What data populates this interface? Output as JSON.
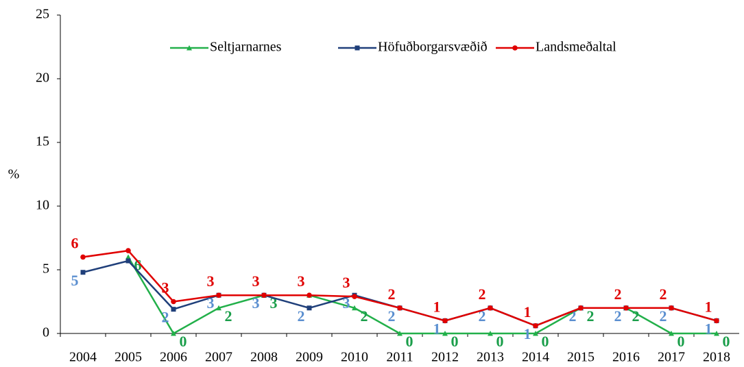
{
  "chart_data": {
    "type": "line",
    "y_label": "%",
    "categories": [
      "2004",
      "2005",
      "2006",
      "2007",
      "2008",
      "2009",
      "2010",
      "2011",
      "2012",
      "2013",
      "2014",
      "2015",
      "2016",
      "2017",
      "2018"
    ],
    "series": [
      {
        "name": "Seltjarnarnes",
        "color": "#22b04a",
        "label_color": "#1a9e4a",
        "marker": "triangle",
        "values": [
          null,
          6.0,
          0,
          2,
          3,
          3,
          2,
          0,
          0,
          0,
          0,
          2,
          2,
          0,
          0
        ],
        "value_labels": [
          null,
          "6",
          "0",
          "2",
          "3",
          null,
          "2",
          "0",
          "0",
          "0",
          "0",
          "2",
          "2",
          "0",
          "0"
        ]
      },
      {
        "name": "Höfuðborgarsvæðið",
        "color": "#1f3f7a",
        "label_color": "#5b8fd0",
        "marker": "square",
        "values": [
          4.8,
          5.7,
          1.9,
          3.0,
          3.0,
          2.0,
          3.0,
          2.0,
          1.0,
          2.0,
          0.6,
          2.0,
          2.0,
          2.0,
          1.0
        ],
        "value_labels": [
          "5",
          null,
          "2",
          "3",
          "3",
          "2",
          "3",
          "2",
          "1",
          "2",
          "1",
          "2",
          "2",
          "2",
          "1"
        ]
      },
      {
        "name": "Landsmeðaltal",
        "color": "#e00000",
        "label_color": "#e00000",
        "marker": "circle",
        "values": [
          6.0,
          6.5,
          2.5,
          3.0,
          3.0,
          3.0,
          2.9,
          2.0,
          1.0,
          2.0,
          0.6,
          2.0,
          2.0,
          2.0,
          1.0
        ],
        "value_labels": [
          "6",
          null,
          "3",
          "3",
          "3",
          "3",
          "3",
          "2",
          "1",
          "2",
          "1",
          null,
          "2",
          "2",
          "1"
        ]
      }
    ],
    "ylim": [
      0,
      25
    ],
    "yticks": [
      0,
      5,
      10,
      15,
      20,
      25
    ],
    "legend": "top"
  }
}
